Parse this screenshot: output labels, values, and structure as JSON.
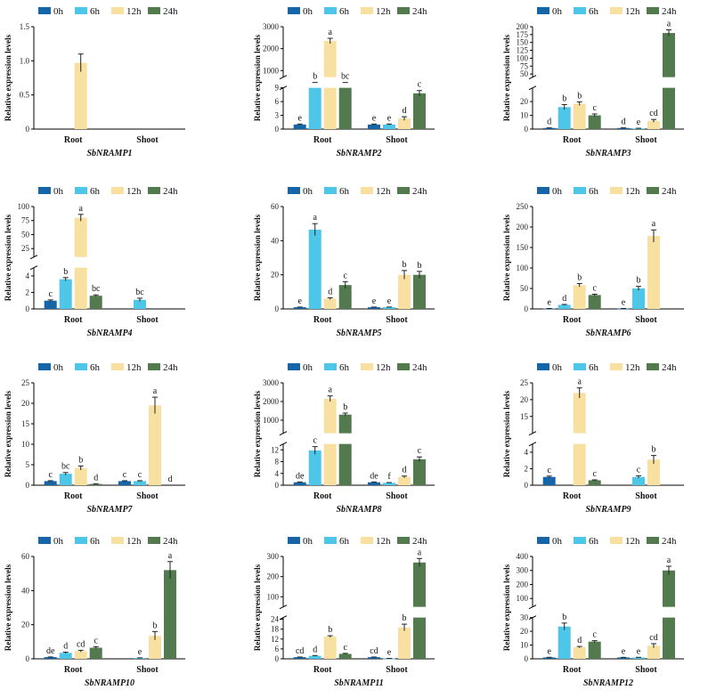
{
  "figure": {
    "legend": [
      "0h",
      "6h",
      "12h",
      "24h"
    ],
    "colors": [
      "#1565a8",
      "#4dc6e8",
      "#f8e0a0",
      "#527a4e"
    ],
    "ylabel": "Relative expression levels",
    "categories": [
      "Root",
      "Shoot"
    ]
  },
  "chart_data": [
    {
      "type": "bar",
      "gene": "SbNRAMP1",
      "title": "SbNRAMP1",
      "categories": [
        "Root",
        "Shoot"
      ],
      "ylabel": "Relative expression levels",
      "ylim": [
        0,
        1.5
      ],
      "yticks": [
        0,
        0.5,
        1.0,
        1.5
      ],
      "yticklabels": [
        "0",
        "0.5",
        "1.0",
        "1.5"
      ],
      "series": [
        {
          "name": "0h",
          "values": [
            0,
            0
          ],
          "errors": [
            0,
            0
          ],
          "letters": [
            "",
            ""
          ]
        },
        {
          "name": "6h",
          "values": [
            0,
            0
          ],
          "errors": [
            0,
            0
          ],
          "letters": [
            "",
            ""
          ]
        },
        {
          "name": "12h",
          "values": [
            0.97,
            0
          ],
          "errors": [
            0.13,
            0
          ],
          "letters": [
            "",
            ""
          ]
        },
        {
          "name": "24h",
          "values": [
            0,
            0
          ],
          "errors": [
            0,
            0
          ],
          "letters": [
            "",
            ""
          ]
        }
      ]
    },
    {
      "type": "bar",
      "gene": "SbNRAMP2",
      "title": "SbNRAMP2",
      "categories": [
        "Root",
        "Shoot"
      ],
      "ylabel": "Relative expression levels",
      "ylim": [
        0,
        3000
      ],
      "axis_break": [
        9,
        700
      ],
      "yticks": [
        0,
        3,
        6,
        9,
        1000,
        2000,
        3000
      ],
      "yticklabels": [
        "0",
        "3",
        "6",
        "9",
        "1000",
        "2000",
        "3000"
      ],
      "series": [
        {
          "name": "0h",
          "values": [
            1,
            1
          ],
          "errors": [
            0.1,
            0.1
          ],
          "letters": [
            "e",
            "e"
          ]
        },
        {
          "name": "6h",
          "values": [
            180,
            1
          ],
          "errors": [
            20,
            0.1
          ],
          "letters": [
            "b",
            "e"
          ]
        },
        {
          "name": "12h",
          "values": [
            2350,
            2.3
          ],
          "errors": [
            120,
            0.4
          ],
          "letters": [
            "a",
            "d"
          ]
        },
        {
          "name": "24h",
          "values": [
            150,
            7.8
          ],
          "errors": [
            15,
            0.6
          ],
          "letters": [
            "bc",
            "c"
          ]
        }
      ]
    },
    {
      "type": "bar",
      "gene": "SbNRAMP3",
      "title": "SbNRAMP3",
      "categories": [
        "Root",
        "Shoot"
      ],
      "ylabel": "Relative expression levels",
      "ylim": [
        0,
        200
      ],
      "axis_break": [
        30,
        40
      ],
      "yticks": [
        0,
        10,
        20,
        50,
        75,
        100,
        125,
        150,
        175,
        200
      ],
      "yticklabels": [
        "0",
        "10",
        "20",
        "50",
        "75",
        "100",
        "125",
        "150",
        "175",
        "200"
      ],
      "series": [
        {
          "name": "0h",
          "values": [
            0.8,
            0.8
          ],
          "errors": [
            0.1,
            0.1
          ],
          "letters": [
            "d",
            "d"
          ]
        },
        {
          "name": "6h",
          "values": [
            16,
            0.5
          ],
          "errors": [
            1.8,
            0.1
          ],
          "letters": [
            "b",
            "e"
          ]
        },
        {
          "name": "12h",
          "values": [
            18.5,
            6
          ],
          "errors": [
            1.3,
            1
          ],
          "letters": [
            "b",
            "cd"
          ]
        },
        {
          "name": "24h",
          "values": [
            10,
            180
          ],
          "errors": [
            1,
            10
          ],
          "letters": [
            "c",
            "a"
          ]
        }
      ]
    },
    {
      "type": "bar",
      "gene": "SbNRAMP4",
      "title": "SbNRAMP4",
      "categories": [
        "Root",
        "Shoot"
      ],
      "ylabel": "Relative expression levels",
      "ylim": [
        0,
        100
      ],
      "axis_break": [
        5,
        10
      ],
      "yticks": [
        0,
        2,
        4,
        25,
        50,
        75,
        100
      ],
      "yticklabels": [
        "0",
        "2",
        "4",
        "25",
        "50",
        "75",
        "100"
      ],
      "series": [
        {
          "name": "0h",
          "values": [
            1,
            0
          ],
          "errors": [
            0.1,
            0
          ],
          "letters": [
            "c",
            ""
          ]
        },
        {
          "name": "6h",
          "values": [
            3.6,
            1.1
          ],
          "errors": [
            0.2,
            0.2
          ],
          "letters": [
            "b",
            "bc"
          ]
        },
        {
          "name": "12h",
          "values": [
            80,
            0
          ],
          "errors": [
            6,
            0
          ],
          "letters": [
            "a",
            ""
          ]
        },
        {
          "name": "24h",
          "values": [
            1.6,
            0
          ],
          "errors": [
            0.1,
            0
          ],
          "letters": [
            "bc",
            ""
          ]
        }
      ]
    },
    {
      "type": "bar",
      "gene": "SbNRAMP5",
      "title": "SbNRAMP5",
      "categories": [
        "Root",
        "Shoot"
      ],
      "ylabel": "Relative expression levels",
      "ylim": [
        0,
        60
      ],
      "yticks": [
        0,
        20,
        40,
        60
      ],
      "yticklabels": [
        "0",
        "20",
        "40",
        "60"
      ],
      "series": [
        {
          "name": "0h",
          "values": [
            1,
            1
          ],
          "errors": [
            0.1,
            0.1
          ],
          "letters": [
            "e",
            "e"
          ]
        },
        {
          "name": "6h",
          "values": [
            46.5,
            1
          ],
          "errors": [
            3.5,
            0.1
          ],
          "letters": [
            "a",
            "e"
          ]
        },
        {
          "name": "12h",
          "values": [
            6,
            20
          ],
          "errors": [
            0.5,
            2.5
          ],
          "letters": [
            "d",
            "b"
          ]
        },
        {
          "name": "24h",
          "values": [
            14,
            20
          ],
          "errors": [
            2,
            2
          ],
          "letters": [
            "c",
            "b"
          ]
        }
      ]
    },
    {
      "type": "bar",
      "gene": "SbNRAMP6",
      "title": "SbNRAMP6",
      "categories": [
        "Root",
        "Shoot"
      ],
      "ylabel": "Relative expression levels",
      "ylim": [
        0,
        250
      ],
      "yticks": [
        0,
        50,
        100,
        150,
        200,
        250
      ],
      "yticklabels": [
        "0",
        "50",
        "100",
        "150",
        "200",
        "250"
      ],
      "series": [
        {
          "name": "0h",
          "values": [
            1,
            1
          ],
          "errors": [
            0.1,
            0.1
          ],
          "letters": [
            "e",
            "e"
          ]
        },
        {
          "name": "6h",
          "values": [
            10,
            50
          ],
          "errors": [
            1,
            5
          ],
          "letters": [
            "d",
            "b"
          ]
        },
        {
          "name": "12h",
          "values": [
            58,
            178
          ],
          "errors": [
            4,
            15
          ],
          "letters": [
            "b",
            "a"
          ]
        },
        {
          "name": "24h",
          "values": [
            34,
            0
          ],
          "errors": [
            2,
            0
          ],
          "letters": [
            "c",
            ""
          ]
        }
      ]
    },
    {
      "type": "bar",
      "gene": "SbNRAMP7",
      "title": "SbNRAMP7",
      "categories": [
        "Root",
        "Shoot"
      ],
      "ylabel": "Relative expression levels",
      "ylim": [
        0,
        25
      ],
      "yticks": [
        0,
        5,
        10,
        15,
        20,
        25
      ],
      "yticklabels": [
        "0",
        "5",
        "10",
        "15",
        "20",
        "25"
      ],
      "series": [
        {
          "name": "0h",
          "values": [
            1,
            1
          ],
          "errors": [
            0.1,
            0.1
          ],
          "letters": [
            "c",
            "c"
          ]
        },
        {
          "name": "6h",
          "values": [
            2.8,
            1
          ],
          "errors": [
            0.3,
            0.1
          ],
          "letters": [
            "bc",
            "c"
          ]
        },
        {
          "name": "12h",
          "values": [
            4.2,
            19.5
          ],
          "errors": [
            0.5,
            2
          ],
          "letters": [
            "b",
            "a"
          ]
        },
        {
          "name": "24h",
          "values": [
            0.3,
            0
          ],
          "errors": [
            0.05,
            0
          ],
          "letters": [
            "d",
            "d"
          ]
        }
      ]
    },
    {
      "type": "bar",
      "gene": "SbNRAMP8",
      "title": "SbNRAMP8",
      "categories": [
        "Root",
        "Shoot"
      ],
      "ylabel": "Relative expression levels",
      "ylim": [
        0,
        3000
      ],
      "axis_break": [
        14,
        300
      ],
      "yticks": [
        0,
        4,
        8,
        12,
        1000,
        2000,
        3000
      ],
      "yticklabels": [
        "0",
        "4",
        "8",
        "12",
        "1000",
        "2000",
        "3000"
      ],
      "series": [
        {
          "name": "0h",
          "values": [
            1,
            1
          ],
          "errors": [
            0.1,
            0.1
          ],
          "letters": [
            "de",
            "de"
          ]
        },
        {
          "name": "6h",
          "values": [
            11.8,
            0.8
          ],
          "errors": [
            1.3,
            0.1
          ],
          "letters": [
            "c",
            "f"
          ]
        },
        {
          "name": "12h",
          "values": [
            2150,
            2.8
          ],
          "errors": [
            150,
            0.3
          ],
          "letters": [
            "a",
            "d"
          ]
        },
        {
          "name": "24h",
          "values": [
            1300,
            8.8
          ],
          "errors": [
            80,
            0.8
          ],
          "letters": [
            "b",
            "c"
          ]
        }
      ]
    },
    {
      "type": "bar",
      "gene": "SbNRAMP9",
      "title": "SbNRAMP9",
      "categories": [
        "Root",
        "Shoot"
      ],
      "ylabel": "Relative expression levels",
      "ylim": [
        0,
        25
      ],
      "axis_break": [
        5,
        10
      ],
      "yticks": [
        0,
        2,
        4,
        15,
        20,
        25
      ],
      "yticklabels": [
        "0",
        "2",
        "4",
        "15",
        "20",
        "25"
      ],
      "series": [
        {
          "name": "0h",
          "values": [
            1,
            0
          ],
          "errors": [
            0.1,
            0
          ],
          "letters": [
            "c",
            ""
          ]
        },
        {
          "name": "6h",
          "values": [
            0,
            1
          ],
          "errors": [
            0,
            0.15
          ],
          "letters": [
            "",
            "c"
          ]
        },
        {
          "name": "12h",
          "values": [
            22,
            3.1
          ],
          "errors": [
            1.5,
            0.5
          ],
          "letters": [
            "a",
            "b"
          ]
        },
        {
          "name": "24h",
          "values": [
            0.6,
            0
          ],
          "errors": [
            0.05,
            0
          ],
          "letters": [
            "c",
            ""
          ]
        }
      ]
    },
    {
      "type": "bar",
      "gene": "SbNRAMP10",
      "title": "SbNRAMP10",
      "categories": [
        "Root",
        "Shoot"
      ],
      "ylabel": "Relative expression levels",
      "ylim": [
        0,
        60
      ],
      "yticks": [
        0,
        20,
        40,
        60
      ],
      "yticklabels": [
        "0",
        "20",
        "40",
        "60"
      ],
      "series": [
        {
          "name": "0h",
          "values": [
            1,
            0
          ],
          "errors": [
            0.1,
            0
          ],
          "letters": [
            "de",
            ""
          ]
        },
        {
          "name": "6h",
          "values": [
            3.5,
            0.5
          ],
          "errors": [
            0.4,
            0.1
          ],
          "letters": [
            "d",
            "e"
          ]
        },
        {
          "name": "12h",
          "values": [
            4.5,
            13.5
          ],
          "errors": [
            0.5,
            2.5
          ],
          "letters": [
            "cd",
            "b"
          ]
        },
        {
          "name": "24h",
          "values": [
            6.5,
            52
          ],
          "errors": [
            0.6,
            5
          ],
          "letters": [
            "c",
            "a"
          ]
        }
      ]
    },
    {
      "type": "bar",
      "gene": "SbNRAMP11",
      "title": "SbNRAMP11",
      "categories": [
        "Root",
        "Shoot"
      ],
      "ylabel": "Relative expression levels",
      "ylim": [
        0,
        300
      ],
      "axis_break": [
        25,
        50
      ],
      "yticks": [
        0,
        6,
        12,
        18,
        24,
        100,
        200,
        300
      ],
      "yticklabels": [
        "0",
        "6",
        "12",
        "18",
        "24",
        "100",
        "200",
        "300"
      ],
      "series": [
        {
          "name": "0h",
          "values": [
            1,
            1
          ],
          "errors": [
            0.1,
            0.1
          ],
          "letters": [
            "cd",
            "cd"
          ]
        },
        {
          "name": "6h",
          "values": [
            1.8,
            0.2
          ],
          "errors": [
            0.2,
            0.05
          ],
          "letters": [
            "d",
            "e"
          ]
        },
        {
          "name": "12h",
          "values": [
            13.5,
            19
          ],
          "errors": [
            0.5,
            2
          ],
          "letters": [
            "b",
            "b"
          ]
        },
        {
          "name": "24h",
          "values": [
            3,
            270
          ],
          "errors": [
            0.3,
            20
          ],
          "letters": [
            "c",
            "a"
          ]
        }
      ]
    },
    {
      "type": "bar",
      "gene": "SbNRAMP12",
      "title": "SbNRAMP12",
      "categories": [
        "Root",
        "Shoot"
      ],
      "ylabel": "Relative expression levels",
      "ylim": [
        0,
        400
      ],
      "axis_break": [
        30,
        40
      ],
      "yticks": [
        0,
        10,
        20,
        30,
        100,
        200,
        300,
        400
      ],
      "yticklabels": [
        "0",
        "10",
        "20",
        "30",
        "100",
        "200",
        "300",
        "400"
      ],
      "series": [
        {
          "name": "0h",
          "values": [
            1,
            1
          ],
          "errors": [
            0.1,
            0.1
          ],
          "letters": [
            "e",
            "e"
          ]
        },
        {
          "name": "6h",
          "values": [
            23.5,
            1
          ],
          "errors": [
            2.5,
            0.1
          ],
          "letters": [
            "b",
            "e"
          ]
        },
        {
          "name": "12h",
          "values": [
            8.5,
            9.5
          ],
          "errors": [
            0.5,
            1.5
          ],
          "letters": [
            "d",
            "cd"
          ]
        },
        {
          "name": "24h",
          "values": [
            12.5,
            300
          ],
          "errors": [
            0.7,
            30
          ],
          "letters": [
            "c",
            "a"
          ]
        }
      ]
    }
  ]
}
